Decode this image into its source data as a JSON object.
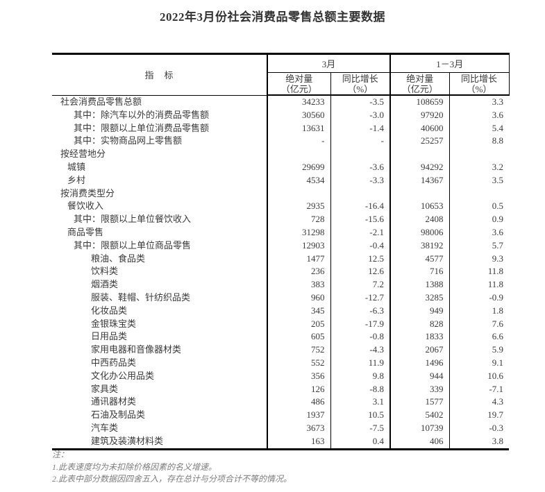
{
  "title": "2022年3月份社会消费品零售总额主要数据",
  "table": {
    "indicator_header": "指　标",
    "groups": [
      {
        "label": "3月",
        "abs": "绝对量",
        "abs_unit": "（亿元）",
        "yoy": "同比增长",
        "yoy_unit": "（%）"
      },
      {
        "label": "1－3月",
        "abs": "绝对量",
        "abs_unit": "（亿元）",
        "yoy": "同比增长",
        "yoy_unit": "（%）"
      }
    ],
    "rows": [
      {
        "label": "社会消费品零售总额",
        "indent": 0,
        "values": [
          "34233",
          "-3.5",
          "108659",
          "3.3"
        ]
      },
      {
        "label": "其中：除汽车以外的消费品零售额",
        "indent": 2,
        "values": [
          "30560",
          "-3.0",
          "97920",
          "3.6"
        ]
      },
      {
        "label": "其中：限额以上单位消费品零售额",
        "indent": 2,
        "values": [
          "13631",
          "-1.4",
          "40600",
          "5.4"
        ]
      },
      {
        "label": "其中：实物商品网上零售额",
        "indent": 2,
        "values": [
          "-",
          "-",
          "25257",
          "8.8"
        ]
      },
      {
        "label": "按经营地分",
        "indent": 0,
        "values": [
          "",
          "",
          "",
          ""
        ]
      },
      {
        "label": "城镇",
        "indent": 1,
        "values": [
          "29699",
          "-3.6",
          "94292",
          "3.2"
        ]
      },
      {
        "label": "乡村",
        "indent": 1,
        "values": [
          "4534",
          "-3.3",
          "14367",
          "3.5"
        ]
      },
      {
        "label": "按消费类型分",
        "indent": 0,
        "values": [
          "",
          "",
          "",
          ""
        ]
      },
      {
        "label": "餐饮收入",
        "indent": 1,
        "values": [
          "2935",
          "-16.4",
          "10653",
          "0.5"
        ]
      },
      {
        "label": "其中：限额以上单位餐饮收入",
        "indent": 2,
        "values": [
          "728",
          "-15.6",
          "2408",
          "0.9"
        ]
      },
      {
        "label": "商品零售",
        "indent": 1,
        "values": [
          "31298",
          "-2.1",
          "98006",
          "3.6"
        ]
      },
      {
        "label": "其中：限额以上单位商品零售",
        "indent": 2,
        "values": [
          "12903",
          "-0.4",
          "38192",
          "5.7"
        ]
      },
      {
        "label": "粮油、食品类",
        "indent": 3,
        "values": [
          "1477",
          "12.5",
          "4577",
          "9.3"
        ]
      },
      {
        "label": "饮料类",
        "indent": 3,
        "values": [
          "236",
          "12.6",
          "716",
          "11.8"
        ]
      },
      {
        "label": "烟酒类",
        "indent": 3,
        "values": [
          "383",
          "7.2",
          "1388",
          "11.8"
        ]
      },
      {
        "label": "服装、鞋帽、针纺织品类",
        "indent": 3,
        "values": [
          "960",
          "-12.7",
          "3285",
          "-0.9"
        ]
      },
      {
        "label": "化妆品类",
        "indent": 3,
        "values": [
          "345",
          "-6.3",
          "949",
          "1.8"
        ]
      },
      {
        "label": "金银珠宝类",
        "indent": 3,
        "values": [
          "205",
          "-17.9",
          "828",
          "7.6"
        ]
      },
      {
        "label": "日用品类",
        "indent": 3,
        "values": [
          "605",
          "-0.8",
          "1833",
          "6.6"
        ]
      },
      {
        "label": "家用电器和音像器材类",
        "indent": 3,
        "values": [
          "752",
          "-4.3",
          "2067",
          "5.9"
        ]
      },
      {
        "label": "中西药品类",
        "indent": 3,
        "values": [
          "552",
          "11.9",
          "1496",
          "9.1"
        ]
      },
      {
        "label": "文化办公用品类",
        "indent": 3,
        "values": [
          "356",
          "9.8",
          "944",
          "10.6"
        ]
      },
      {
        "label": "家具类",
        "indent": 3,
        "values": [
          "126",
          "-8.8",
          "339",
          "-7.1"
        ]
      },
      {
        "label": "通讯器材类",
        "indent": 3,
        "values": [
          "486",
          "3.1",
          "1577",
          "4.3"
        ]
      },
      {
        "label": "石油及制品类",
        "indent": 3,
        "values": [
          "1937",
          "10.5",
          "5402",
          "19.7"
        ]
      },
      {
        "label": "汽车类",
        "indent": 3,
        "values": [
          "3673",
          "-7.5",
          "10739",
          "-0.3"
        ]
      },
      {
        "label": "建筑及装潢材料类",
        "indent": 3,
        "values": [
          "163",
          "0.4",
          "406",
          "3.8"
        ]
      }
    ]
  },
  "notes": {
    "label": "注：",
    "items": [
      "1.此表速度均为未扣除价格因素的名义增速。",
      "2.此表中部分数据因四舍五入，存在总计与分项合计不等的情况。"
    ]
  }
}
